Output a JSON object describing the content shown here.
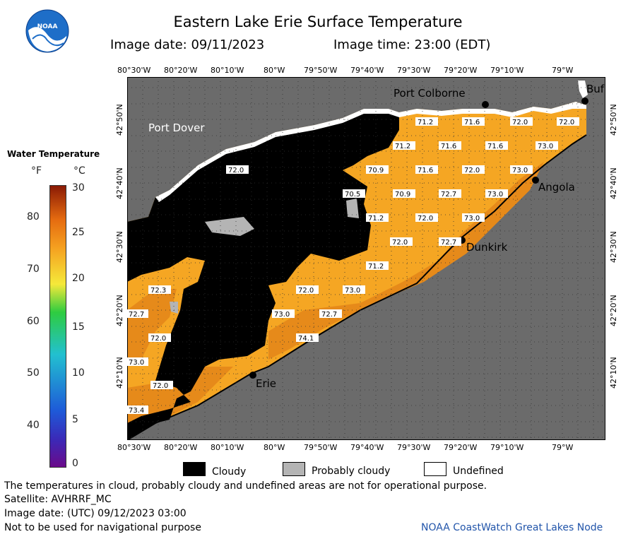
{
  "header": {
    "title": "Eastern Lake Erie Surface Temperature",
    "image_date": "Image date: 09/11/2023",
    "image_time": "Image time: 23:00 (EDT)",
    "logo_text": "NOAA"
  },
  "axes": {
    "lon_labels": [
      "80°30'W",
      "80°20'W",
      "80°10'W",
      "80°W",
      "79°50'W",
      "79°40'W",
      "79°30'W",
      "79°20'W",
      "79°10'W",
      "79°W"
    ],
    "lat_labels": [
      "42°50'N",
      "42°40'N",
      "42°30'N",
      "42°20'N",
      "42°10'N"
    ]
  },
  "places": {
    "port_dover": "Port Dover",
    "port_colborne": "Port Colborne",
    "buffalo": "Buf",
    "angola": "Angola",
    "dunkirk": "Dunkirk",
    "erie": "Erie"
  },
  "temperature_labels": [
    "71.2",
    "71.6",
    "72.0",
    "72.0",
    "71.2",
    "71.6",
    "71.6",
    "73.0",
    "72.0",
    "70.9",
    "71.6",
    "72.0",
    "73.0",
    "70.5",
    "70.9",
    "72.7",
    "73.0",
    "71.2",
    "72.0",
    "73.0",
    "72.0",
    "72.7",
    "71.2",
    "72.3",
    "72.0",
    "73.0",
    "72.7",
    "73.0",
    "72.7",
    "72.0",
    "74.1",
    "73.0",
    "72.0",
    "73.4"
  ],
  "legend": {
    "title": "Water Temperature",
    "unit_f": "°F",
    "unit_c": "°C",
    "f_ticks": [
      "80",
      "70",
      "60",
      "50",
      "40"
    ],
    "c_ticks": [
      "30",
      "25",
      "20",
      "15",
      "10",
      "5",
      "0"
    ],
    "colors": {
      "cold": "#6a0a8a",
      "cool": "#1e5ad8",
      "mid": "#22c0d0",
      "green": "#2ecc40",
      "yellow": "#f5e93a",
      "orange": "#f5a020",
      "hot": "#e56b10",
      "max": "#8a1a05"
    }
  },
  "key": {
    "cloudy": "Cloudy",
    "probably_cloudy": "Probably cloudy",
    "undefined": "Undefined"
  },
  "footer": {
    "disclaimer": "The temperatures in cloud, probably cloudy and undefined areas are not for operational purpose.",
    "satellite": "Satellite: AVHRRF_MC",
    "utc_date": "Image date: (UTC) 09/12/2023  03:00",
    "nav": "Not to be used for navigational purpose",
    "credit": "NOAA CoastWatch Great Lakes Node"
  },
  "colors": {
    "land": "#6b6b6b",
    "cloud": "#000000",
    "water": "#f5a623",
    "water_dark": "#e68a1a",
    "prob_cloud": "#b4b4b4",
    "grid": "#333333"
  }
}
